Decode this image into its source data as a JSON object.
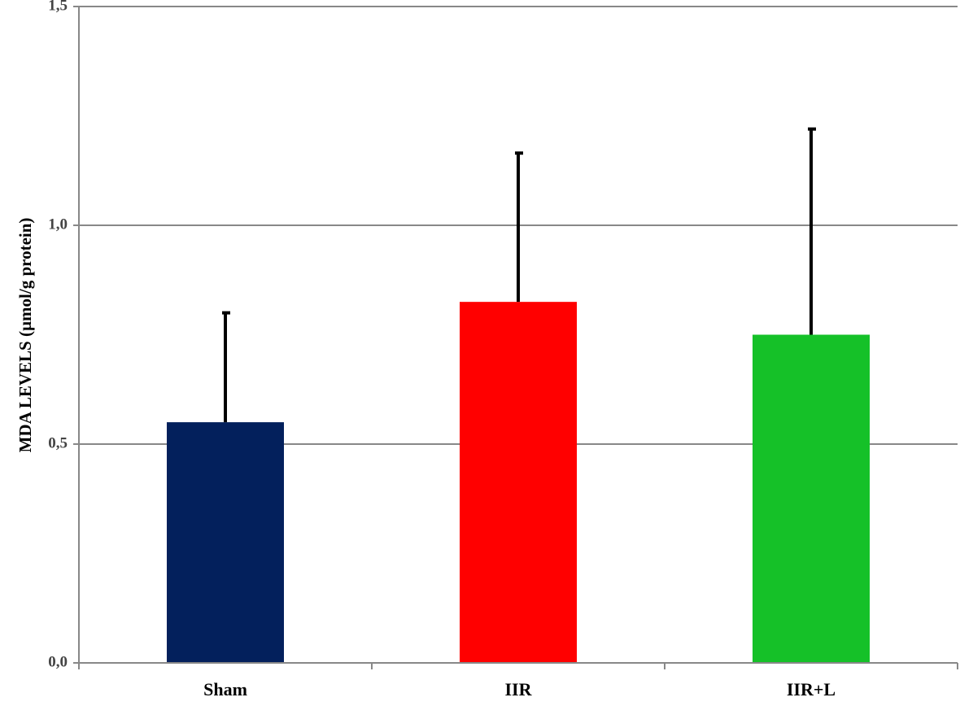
{
  "chart_data": {
    "type": "bar",
    "title": "",
    "xlabel": "",
    "ylabel": "MDA LEVELS  (µmol/g  protein)",
    "ylim": [
      0,
      1.5
    ],
    "yticks": [
      "0,0",
      "0,5",
      "1,0",
      "1,5"
    ],
    "ytick_values": [
      0,
      0.5,
      1.0,
      1.5
    ],
    "grid": true,
    "legend": "none",
    "categories": [
      "Sham",
      "IIR",
      "IIR+L"
    ],
    "values": [
      0.55,
      0.825,
      0.75
    ],
    "error_upper": [
      0.8,
      1.165,
      1.22
    ],
    "colors": [
      "#03205c",
      "#ff0000",
      "#15c128"
    ]
  }
}
